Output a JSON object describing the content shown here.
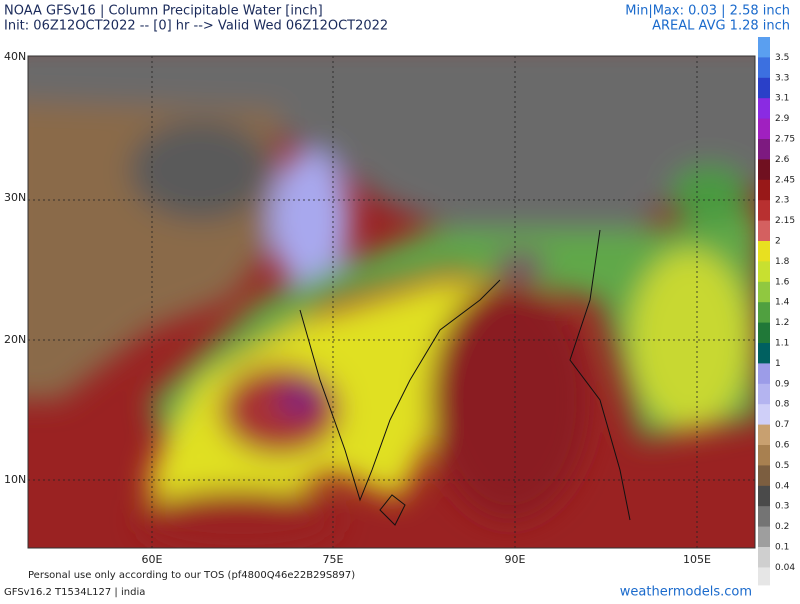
{
  "header": {
    "title": "NOAA GFSv16 | Column Precipitable Water [inch]",
    "init": "Init: 06Z12OCT2022 -- [0] hr --> Valid Wed 06Z12OCT2022",
    "minmax": "Min|Max: 0.03 | 2.58 inch",
    "areal_avg": "AREAL AVG 1.28 inch"
  },
  "map": {
    "lat_labels": [
      "40N",
      "30N",
      "20N",
      "10N"
    ],
    "lon_labels": [
      "60E",
      "75E",
      "90E",
      "105E"
    ]
  },
  "colorbar": {
    "levels": [
      {
        "label": "3.5",
        "color": "#5a9ff0"
      },
      {
        "label": "3.3",
        "color": "#3c70e0"
      },
      {
        "label": "3.1",
        "color": "#2a40c8"
      },
      {
        "label": "2.9",
        "color": "#8a2be2"
      },
      {
        "label": "2.75",
        "color": "#a020c0"
      },
      {
        "label": "2.6",
        "color": "#7d1a80"
      },
      {
        "label": "2.45",
        "color": "#701020"
      },
      {
        "label": "2.3",
        "color": "#981818"
      },
      {
        "label": "2.15",
        "color": "#b83030"
      },
      {
        "label": "2",
        "color": "#d46060"
      },
      {
        "label": "1.8",
        "color": "#e8e020"
      },
      {
        "label": "1.6",
        "color": "#c8e030"
      },
      {
        "label": "1.4",
        "color": "#90c840"
      },
      {
        "label": "1.2",
        "color": "#50a040"
      },
      {
        "label": "1.1",
        "color": "#207838"
      },
      {
        "label": "1",
        "color": "#006060"
      },
      {
        "label": "0.9",
        "color": "#9c9ce8"
      },
      {
        "label": "0.8",
        "color": "#b4b4f0"
      },
      {
        "label": "0.7",
        "color": "#cfcff8"
      },
      {
        "label": "0.6",
        "color": "#c8a070"
      },
      {
        "label": "0.5",
        "color": "#a88050"
      },
      {
        "label": "0.4",
        "color": "#7c5e40"
      },
      {
        "label": "0.3",
        "color": "#4a4a4a"
      },
      {
        "label": "0.2",
        "color": "#747474"
      },
      {
        "label": "0.1",
        "color": "#9e9e9e"
      },
      {
        "label": "0.04",
        "color": "#cfcfcf"
      }
    ]
  },
  "footer": {
    "tos": "Personal use only according to our TOS (pf4800Q46e22B29S897)",
    "model": "GFSv16.2 T1534L127 | india",
    "site": "weathermodels.com"
  }
}
